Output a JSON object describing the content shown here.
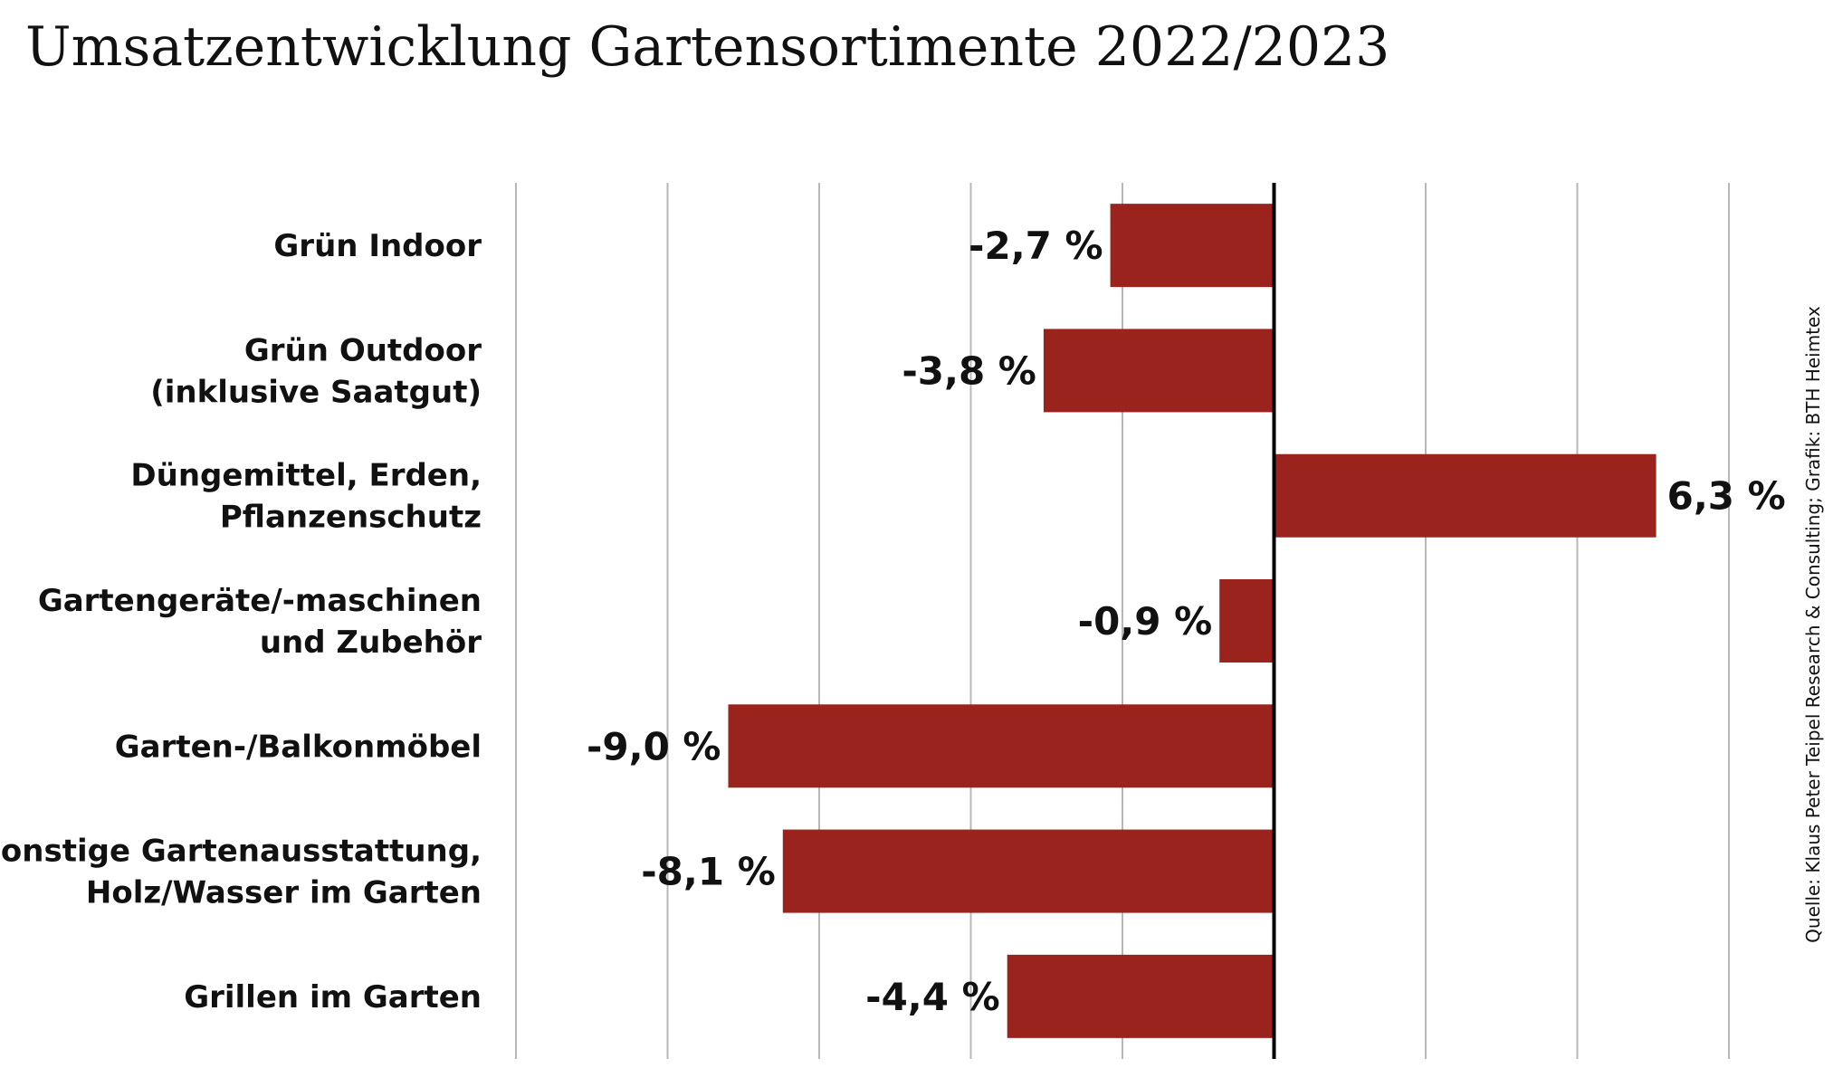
{
  "chart_data": {
    "type": "bar",
    "orientation": "horizontal",
    "title": "Umsatzentwicklung Gartensortimente 2022/2023",
    "categories": [
      [
        "Grün Indoor"
      ],
      [
        "Grün Outdoor",
        "(inklusive Saatgut)"
      ],
      [
        "Düngemittel, Erden,",
        "Pflanzenschutz"
      ],
      [
        "Gartengeräte/-maschinen",
        "und Zubehör"
      ],
      [
        "Garten-/Balkonmöbel"
      ],
      [
        "Sonstige Gartenausstattung,",
        "Holz/Wasser im Garten"
      ],
      [
        "Grillen im Garten"
      ]
    ],
    "values": [
      -2.7,
      -3.8,
      6.3,
      -0.9,
      -9.0,
      -8.1,
      -4.4
    ],
    "value_labels": [
      "-2,7 %",
      "-3,8 %",
      "6,3 %",
      "-0,9 %",
      "-9,0 %",
      "-8,1 %",
      "-4,4 %"
    ],
    "xlim": [
      -12.5,
      7.5
    ],
    "grid": "vertical",
    "xlabel": "",
    "ylabel": "",
    "bar_color": "#9b231d",
    "source": "Quelle: Klaus Peter Teipel Research & Consulting; Grafik: BTH Heimtex"
  }
}
